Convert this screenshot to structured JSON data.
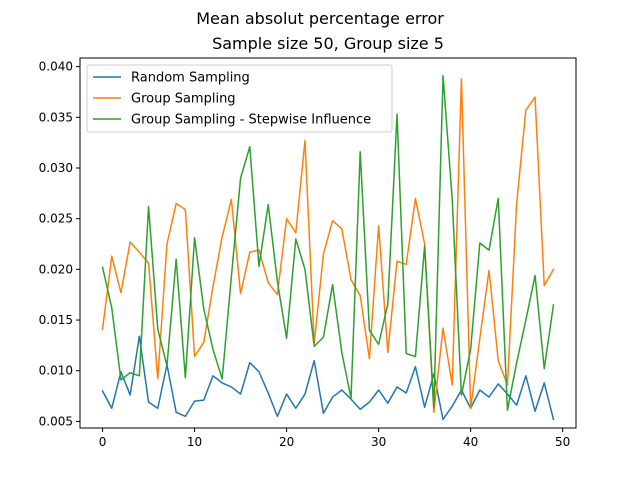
{
  "chart_data": {
    "type": "line",
    "title": "Mean absolut percentage error",
    "subtitle": "Sample size 50, Group size 5",
    "xlabel": "",
    "ylabel": "",
    "xlim": [
      -2.45,
      51.45
    ],
    "ylim": [
      0.00435,
      0.04085
    ],
    "xticks": [
      0,
      10,
      20,
      30,
      40,
      50
    ],
    "yticks": [
      0.005,
      0.01,
      0.015,
      0.02,
      0.025,
      0.03,
      0.035,
      0.04
    ],
    "ytick_labels": [
      "0.005",
      "0.010",
      "0.015",
      "0.020",
      "0.025",
      "0.030",
      "0.035",
      "0.040"
    ],
    "grid": false,
    "legend_position": "top-left",
    "x": [
      0,
      1,
      2,
      3,
      4,
      5,
      6,
      7,
      8,
      9,
      10,
      11,
      12,
      13,
      14,
      15,
      16,
      17,
      18,
      19,
      20,
      21,
      22,
      23,
      24,
      25,
      26,
      27,
      28,
      29,
      30,
      31,
      32,
      33,
      34,
      35,
      36,
      37,
      38,
      39,
      40,
      41,
      42,
      43,
      44,
      45,
      46,
      47,
      48,
      49
    ],
    "series": [
      {
        "name": "Random Sampling",
        "color": "#1f77b4",
        "values": [
          0.008,
          0.0063,
          0.0099,
          0.0076,
          0.0134,
          0.0069,
          0.0063,
          0.0106,
          0.0059,
          0.0055,
          0.007,
          0.0071,
          0.0095,
          0.0088,
          0.0084,
          0.0077,
          0.0108,
          0.0099,
          0.0078,
          0.0055,
          0.0077,
          0.0063,
          0.0077,
          0.011,
          0.0058,
          0.0074,
          0.0081,
          0.0072,
          0.0062,
          0.0069,
          0.0081,
          0.0068,
          0.0084,
          0.0078,
          0.0104,
          0.0064,
          0.0097,
          0.0052,
          0.0065,
          0.0081,
          0.0063,
          0.0081,
          0.0074,
          0.0087,
          0.0077,
          0.0066,
          0.0095,
          0.006,
          0.0088,
          0.0052
        ]
      },
      {
        "name": "Group Sampling",
        "color": "#ff7f0e",
        "values": [
          0.0141,
          0.0213,
          0.0177,
          0.0227,
          0.0217,
          0.0206,
          0.0092,
          0.0225,
          0.0265,
          0.0259,
          0.0114,
          0.0128,
          0.0183,
          0.0232,
          0.0269,
          0.0176,
          0.0217,
          0.0219,
          0.0187,
          0.0175,
          0.025,
          0.0236,
          0.0327,
          0.0127,
          0.0215,
          0.0248,
          0.024,
          0.019,
          0.0174,
          0.0112,
          0.0243,
          0.0118,
          0.0208,
          0.0205,
          0.027,
          0.0225,
          0.0059,
          0.0142,
          0.0086,
          0.0388,
          0.0063,
          0.0132,
          0.0199,
          0.011,
          0.0086,
          0.0265,
          0.0357,
          0.037,
          0.0184,
          0.02
        ]
      },
      {
        "name": "Group Sampling - Stepwise Influence",
        "color": "#2ca02c",
        "values": [
          0.0202,
          0.0162,
          0.0091,
          0.0098,
          0.0095,
          0.0262,
          0.0141,
          0.0105,
          0.021,
          0.0093,
          0.0231,
          0.0161,
          0.0121,
          0.0092,
          0.0193,
          0.029,
          0.0321,
          0.0203,
          0.0264,
          0.0188,
          0.0132,
          0.023,
          0.02,
          0.0124,
          0.0133,
          0.0185,
          0.0118,
          0.0073,
          0.0316,
          0.014,
          0.0126,
          0.0166,
          0.0353,
          0.0117,
          0.0114,
          0.0223,
          0.0064,
          0.0391,
          0.0269,
          0.0076,
          0.0121,
          0.0226,
          0.0219,
          0.027,
          0.0061,
          0.0108,
          0.015,
          0.0194,
          0.0102,
          0.0165
        ]
      }
    ]
  }
}
